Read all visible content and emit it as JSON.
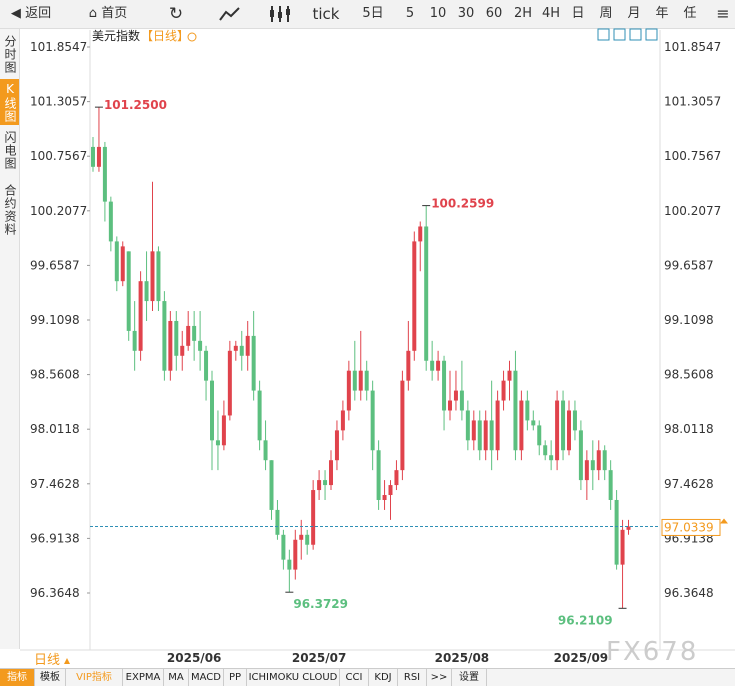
{
  "toolbar": {
    "items": [
      "返回",
      "首页",
      "tick",
      "5日",
      "5",
      "10",
      "30",
      "60",
      "2H",
      "4H",
      "日",
      "周",
      "月",
      "年",
      "任"
    ]
  },
  "sidebar": {
    "items": [
      "分时图",
      "K线图",
      "闪电图",
      "合约资料"
    ]
  },
  "period_button": "日线",
  "tabs": [
    "指标",
    "模板",
    "VIP指标",
    "EXPMA",
    "MA",
    "MACD",
    "PP",
    "ICHIMOKU CLOUD",
    "CCI",
    "KDJ",
    "RSI",
    ">>",
    "设置"
  ],
  "watermark": "FX678",
  "chart_data": {
    "type": "candlestick",
    "title": "美元指数",
    "subtitle": "【日线】",
    "categories": [
      null,
      null,
      null,
      null,
      null,
      null,
      null,
      null,
      null,
      null,
      null,
      null,
      null,
      null,
      null,
      null,
      null,
      "2025/06",
      null,
      null,
      null,
      null,
      null,
      null,
      null,
      null,
      null,
      null,
      null,
      null,
      null,
      null,
      null,
      null,
      null,
      null,
      null,
      null,
      "2025/07",
      null,
      null,
      null,
      null,
      null,
      null,
      null,
      null,
      null,
      null,
      null,
      null,
      null,
      null,
      null,
      null,
      null,
      null,
      null,
      null,
      null,
      null,
      null,
      "2025/08",
      null,
      null,
      null,
      null,
      null,
      null,
      null,
      null,
      null,
      null,
      null,
      null,
      null,
      null,
      null,
      null,
      null,
      null,
      null,
      "2025/09",
      null,
      null,
      null,
      null,
      null,
      null,
      null,
      null
    ],
    "series": [
      {
        "name": null,
        "open": [
          100.85,
          100.65,
          100.85,
          100.3,
          99.9,
          99.5,
          99.8,
          99.0,
          98.8,
          99.5,
          99.3,
          99.8,
          99.3,
          98.6,
          99.1,
          98.75,
          98.85,
          99.05,
          98.9,
          98.8,
          98.5,
          97.9,
          97.85,
          98.15,
          98.8,
          98.85,
          98.75,
          98.95,
          98.4,
          97.9,
          97.7,
          97.2,
          96.95,
          96.7,
          96.6,
          96.9,
          96.95,
          96.85,
          97.4,
          97.5,
          97.45,
          97.7,
          98.0,
          98.2,
          98.6,
          98.4,
          98.6,
          98.4,
          97.8,
          97.3,
          97.35,
          97.45,
          97.6,
          98.5,
          98.8,
          99.9,
          100.05,
          98.7,
          98.6,
          98.7,
          98.2,
          98.3,
          98.4,
          98.2,
          97.9,
          98.1,
          97.8,
          98.1,
          97.8,
          98.3,
          98.5,
          98.6,
          97.8,
          98.3,
          98.1,
          98.05,
          97.85,
          97.75,
          97.7,
          98.3,
          97.8,
          98.2,
          98.0,
          97.5,
          97.7,
          97.6,
          97.8,
          97.6,
          97.3,
          96.65,
          97.0
        ],
        "high": [
          100.95,
          101.25,
          100.9,
          100.35,
          99.95,
          99.9,
          99.8,
          99.3,
          99.6,
          99.8,
          100.5,
          99.85,
          99.4,
          99.2,
          99.2,
          99.0,
          99.2,
          99.2,
          99.2,
          98.85,
          98.6,
          98.2,
          98.3,
          98.9,
          98.9,
          99.0,
          99.1,
          99.2,
          98.5,
          98.1,
          97.7,
          97.3,
          97.0,
          96.8,
          97.0,
          97.1,
          97.0,
          97.5,
          97.6,
          97.6,
          97.8,
          98.1,
          98.3,
          98.7,
          98.9,
          99.0,
          98.7,
          98.5,
          97.9,
          97.5,
          97.5,
          97.7,
          98.6,
          99.1,
          100.0,
          100.1,
          100.2599,
          98.9,
          98.8,
          98.75,
          98.6,
          98.6,
          98.7,
          98.3,
          98.2,
          98.2,
          98.2,
          98.5,
          98.4,
          98.6,
          98.7,
          98.8,
          98.4,
          98.4,
          98.2,
          98.1,
          97.9,
          97.9,
          98.4,
          98.4,
          98.3,
          98.3,
          98.1,
          97.8,
          97.9,
          97.9,
          97.85,
          97.7,
          97.4,
          97.1,
          97.1
        ],
        "low": [
          100.6,
          100.6,
          100.1,
          99.8,
          99.4,
          99.45,
          98.9,
          98.6,
          98.7,
          99.1,
          99.2,
          99.2,
          98.5,
          98.5,
          98.6,
          98.6,
          98.8,
          98.7,
          98.6,
          98.3,
          97.6,
          97.6,
          97.8,
          98.1,
          98.7,
          98.6,
          98.6,
          98.3,
          97.8,
          97.6,
          97.1,
          96.9,
          96.6,
          96.3729,
          96.5,
          96.7,
          96.75,
          96.8,
          97.3,
          97.3,
          97.4,
          97.6,
          97.9,
          98.1,
          98.3,
          98.3,
          98.3,
          97.6,
          97.2,
          97.2,
          97.1,
          97.4,
          97.5,
          98.4,
          98.7,
          99.6,
          98.6,
          98.5,
          98.5,
          98.0,
          98.1,
          98.2,
          98.1,
          97.8,
          97.8,
          97.7,
          97.7,
          97.6,
          97.7,
          98.2,
          98.3,
          97.7,
          97.7,
          98.0,
          98.0,
          97.75,
          97.7,
          97.6,
          97.6,
          97.7,
          97.75,
          97.9,
          97.4,
          97.3,
          97.4,
          97.5,
          97.5,
          97.2,
          96.6,
          96.2109,
          96.95
        ],
        "close": [
          100.65,
          100.85,
          100.3,
          99.9,
          99.5,
          99.85,
          99.0,
          98.8,
          99.5,
          99.3,
          99.8,
          99.3,
          98.6,
          99.1,
          98.75,
          98.85,
          99.05,
          98.9,
          98.8,
          98.5,
          97.9,
          97.85,
          98.15,
          98.8,
          98.85,
          98.75,
          98.95,
          98.4,
          97.9,
          97.7,
          97.2,
          96.95,
          96.7,
          96.6,
          96.9,
          96.95,
          96.85,
          97.4,
          97.5,
          97.45,
          97.7,
          98.0,
          98.2,
          98.6,
          98.4,
          98.6,
          98.4,
          97.8,
          97.3,
          97.35,
          97.45,
          97.6,
          98.5,
          98.8,
          99.9,
          100.05,
          98.7,
          98.6,
          98.7,
          98.2,
          98.3,
          98.4,
          98.2,
          97.9,
          98.1,
          97.8,
          98.1,
          97.8,
          98.3,
          98.5,
          98.6,
          97.8,
          98.3,
          98.1,
          98.05,
          97.85,
          97.75,
          97.7,
          98.3,
          97.8,
          98.2,
          98.0,
          97.5,
          97.7,
          97.6,
          97.8,
          97.6,
          97.3,
          96.65,
          97.0,
          97.0339
        ]
      }
    ],
    "up_color": "#e0434c",
    "down_color": "#5cbf7f",
    "ylim": [
      95.8118,
      102.0256
    ],
    "yticks": [
      96.3648,
      96.9138,
      97.4628,
      98.0118,
      98.5608,
      99.1098,
      99.6587,
      100.2077,
      100.7567,
      101.3057,
      101.8547
    ],
    "last_price": 97.0339,
    "last_price_color": "#2f8fb5",
    "annotations": [
      {
        "value": 101.25,
        "label": "101.2500"
      },
      {
        "value": 100.2599,
        "label": "100.2599"
      },
      {
        "value": 96.3729,
        "label": "96.3729"
      },
      {
        "value": 96.2109,
        "label": "96.2109"
      }
    ]
  }
}
